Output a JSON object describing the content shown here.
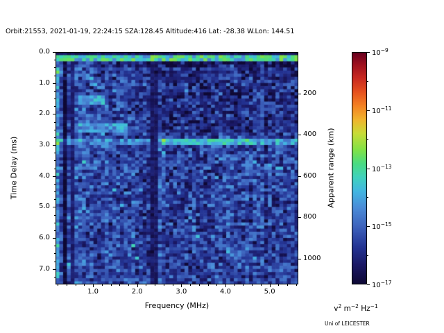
{
  "credit": "Uni of LEICESTER",
  "chart_data": {
    "type": "heatmap",
    "title": "Orbit:21553, 2021-01-19, 22:24:15 SZA:128.45 Altitude:416 Lat: -28.38 W.Lon: 144.51",
    "xlabel": "Frequency (MHz)",
    "ylabel_left": "Time Delay (ms)",
    "ylabel_right": "Apparent range (km)",
    "x_range_mhz": [
      0.15,
      5.65
    ],
    "y_range_ms": [
      0.0,
      7.5
    ],
    "y_axis_inverted": true,
    "x_ticks": [
      1.0,
      2.0,
      3.0,
      4.0,
      5.0
    ],
    "x_tick_labels": [
      "1.0",
      "2.0",
      "3.0",
      "4.0",
      "5.0"
    ],
    "y_ticks_left_ms": [
      0.0,
      1.0,
      2.0,
      3.0,
      4.0,
      5.0,
      6.0,
      7.0
    ],
    "y_tick_labels_left": [
      "0.0",
      "1.0",
      "2.0",
      "3.0",
      "4.0",
      "5.0",
      "6.0",
      "7.0"
    ],
    "y_ticks_right_km": [
      200,
      400,
      600,
      800,
      1000
    ],
    "y_tick_labels_right": [
      "200",
      "400",
      "600",
      "800",
      "1000"
    ],
    "range_per_ms_km": 150,
    "grid": {
      "cols": 64,
      "rows": 75
    },
    "noise": {
      "seed": 7,
      "base_log10": -15.55,
      "sigma": 0.65
    },
    "colorbar": {
      "scale": "log",
      "log_min": -17,
      "log_max": -9,
      "ticks": [
        {
          "log10": -9,
          "base": "10",
          "exp": "−9"
        },
        {
          "log10": -11,
          "base": "10",
          "exp": "−11"
        },
        {
          "log10": -13,
          "base": "10",
          "exp": "−13"
        },
        {
          "log10": -15,
          "base": "10",
          "exp": "−15"
        },
        {
          "log10": -17,
          "base": "10",
          "exp": "−17"
        }
      ],
      "minor_ticks_log10": [
        -10,
        -12,
        -14,
        -16
      ],
      "units_parts": [
        {
          "text": "v",
          "sup": "2"
        },
        {
          "text": " m",
          "sup": "−2"
        },
        {
          "text": " Hz",
          "sup": "−1"
        }
      ]
    },
    "colormap_stops": [
      [
        0.0,
        [
          14,
          8,
          52
        ]
      ],
      [
        0.08,
        [
          26,
          24,
          100
        ]
      ],
      [
        0.16,
        [
          36,
          52,
          148
        ]
      ],
      [
        0.25,
        [
          62,
          100,
          190
        ]
      ],
      [
        0.33,
        [
          74,
          140,
          216
        ]
      ],
      [
        0.4,
        [
          66,
          182,
          226
        ]
      ],
      [
        0.46,
        [
          64,
          210,
          190
        ]
      ],
      [
        0.52,
        [
          74,
          220,
          130
        ]
      ],
      [
        0.58,
        [
          130,
          226,
          70
        ]
      ],
      [
        0.65,
        [
          200,
          220,
          55
        ]
      ],
      [
        0.71,
        [
          240,
          180,
          45
        ]
      ],
      [
        0.77,
        [
          244,
          130,
          35
        ]
      ],
      [
        0.83,
        [
          230,
          80,
          30
        ]
      ],
      [
        0.89,
        [
          200,
          40,
          32
        ]
      ],
      [
        0.95,
        [
          155,
          15,
          30
        ]
      ],
      [
        1.0,
        [
          103,
          0,
          31
        ]
      ]
    ],
    "features": [
      {
        "name": "left-edge-bright-column",
        "effect": "offset",
        "f": [
          0.15,
          0.22
        ],
        "amount": 0.9
      },
      {
        "name": "low-frequency-vertical-striping",
        "effect": "stripes",
        "f": [
          0.15,
          1.15
        ],
        "amp": 1.25,
        "taper": true
      },
      {
        "name": "dark-column-1",
        "effect": "min",
        "f": [
          0.33,
          0.41
        ],
        "value": -16.4,
        "jitter": 0.3
      },
      {
        "name": "dark-column-2",
        "effect": "min",
        "f": [
          0.52,
          0.59
        ],
        "value": -16.2,
        "jitter": 0.3
      },
      {
        "name": "upper-right-quiet-region",
        "effect": "offset",
        "f": [
          2.47,
          5.65
        ],
        "d": [
          0.35,
          2.6
        ],
        "amount": -0.38
      },
      {
        "name": "ionospheric-echo-speckle",
        "effect": "offset",
        "f": [
          0.15,
          1.05
        ],
        "d": [
          0.3,
          0.95
        ],
        "amount": 0.85,
        "random": true
      },
      {
        "name": "dark-gap-below-echo-line",
        "effect": "offset",
        "d": [
          0.3,
          0.46
        ],
        "amount": -0.55
      },
      {
        "name": "cyan-patch-a",
        "effect": "max",
        "f": [
          0.68,
          1.28
        ],
        "d": [
          1.45,
          1.74
        ],
        "value": -14.1,
        "jitter": 0.8
      },
      {
        "name": "cyan-patch-b",
        "effect": "max",
        "f": [
          0.62,
          1.75
        ],
        "d": [
          2.3,
          2.56
        ],
        "value": -14.3,
        "jitter": 0.8
      },
      {
        "name": "surface-reflection-band",
        "effect": "offset",
        "d": [
          2.76,
          3.02
        ],
        "amount": 1.25
      },
      {
        "name": "surface-reflection-bright-segment",
        "effect": "max",
        "f": [
          2.55,
          4.6
        ],
        "d": [
          2.78,
          3.0
        ],
        "value": -13.8,
        "jitter": 0.9
      },
      {
        "name": "deep-echo-speckle",
        "effect": "speckle",
        "f": [
          2.5,
          5.65
        ],
        "d": [
          3.0,
          5.7
        ],
        "prob": 0.055,
        "value": -14.4
      },
      {
        "name": "interference-dark-band",
        "effect": "min",
        "f": [
          2.29,
          2.46
        ],
        "value": -16.35,
        "jitter": 0.35
      },
      {
        "name": "top-edge-dark",
        "effect": "set",
        "d": [
          0.0,
          0.13
        ],
        "value": -16.5,
        "jitter": 0.3
      },
      {
        "name": "ionospheric-echo-line",
        "effect": "max",
        "d": [
          0.13,
          0.31
        ],
        "value": -13.4,
        "jitter": 1.1
      }
    ]
  }
}
